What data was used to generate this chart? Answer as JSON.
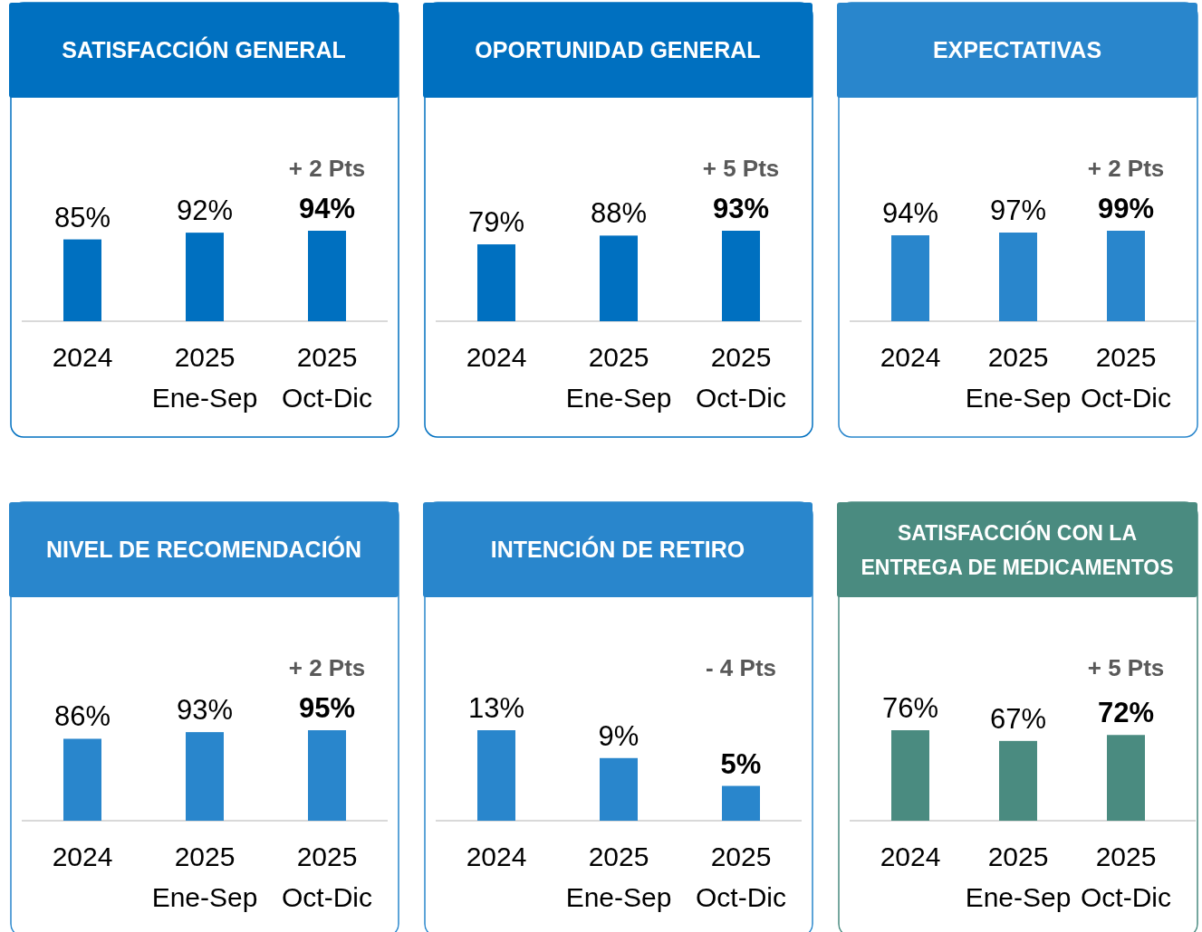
{
  "chart_data": [
    {
      "type": "bar",
      "title": "SATISFACCIÓN GENERAL",
      "categories": [
        "2024",
        "2025 Ene-Sep",
        "2025 Oct-Dic"
      ],
      "values": [
        85,
        92,
        94
      ],
      "value_labels": [
        "85%",
        "92%",
        "94%"
      ],
      "color": "#0070c0",
      "annotations": [
        "+ 2 Pts"
      ]
    },
    {
      "type": "bar",
      "title": "OPORTUNIDAD GENERAL",
      "categories": [
        "2024",
        "2025 Ene-Sep",
        "2025 Oct-Dic"
      ],
      "values": [
        79,
        88,
        93
      ],
      "value_labels": [
        "79%",
        "88%",
        "93%"
      ],
      "color": "#0070c0",
      "annotations": [
        "+ 5 Pts"
      ]
    },
    {
      "type": "bar",
      "title": "EXPECTATIVAS",
      "categories": [
        "2024",
        "2025 Ene-Sep",
        "2025 Oct-Dic"
      ],
      "values": [
        94,
        97,
        99
      ],
      "value_labels": [
        "94%",
        "97%",
        "99%"
      ],
      "color": "#2986cc",
      "annotations": [
        "+ 2 Pts"
      ]
    },
    {
      "type": "bar",
      "title": "NIVEL DE RECOMENDACIÓN",
      "categories": [
        "2024",
        "2025 Ene-Sep",
        "2025 Oct-Dic"
      ],
      "values": [
        86,
        93,
        95
      ],
      "value_labels": [
        "86%",
        "93%",
        "95%"
      ],
      "color": "#2986cc",
      "annotations": [
        "+ 2 Pts"
      ]
    },
    {
      "type": "bar",
      "title": "INTENCIÓN DE RETIRO",
      "categories": [
        "2024",
        "2025 Ene-Sep",
        "2025 Oct-Dic"
      ],
      "values": [
        13,
        9,
        5
      ],
      "value_labels": [
        "13%",
        "9%",
        "5%"
      ],
      "color": "#2986cc",
      "annotations": [
        "- 4 Pts"
      ]
    },
    {
      "type": "bar",
      "title": "SATISFACCIÓN CON LA ENTREGA DE MEDICAMENTOS",
      "categories": [
        "2024",
        "2025 Ene-Sep",
        "2025 Oct-Dic"
      ],
      "values": [
        76,
        67,
        72
      ],
      "value_labels": [
        "76%",
        "67%",
        "72%"
      ],
      "color": "#4a8b80",
      "annotations": [
        "+ 5 Pts"
      ]
    }
  ]
}
